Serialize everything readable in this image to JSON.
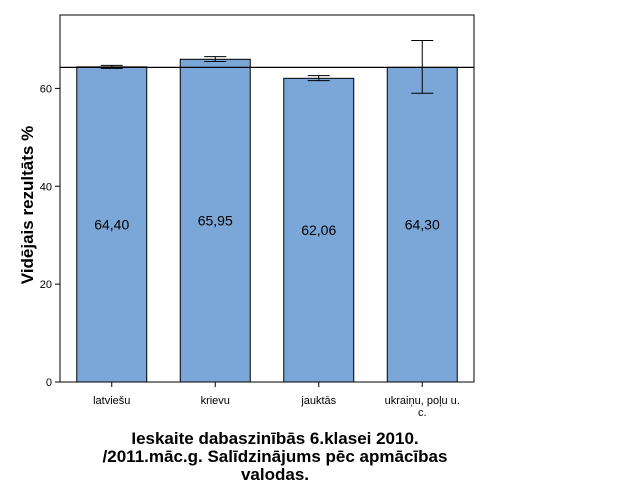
{
  "chart_data": {
    "type": "bar",
    "categories": [
      "latviešu",
      "krievu",
      "jauktās",
      "ukraiņu, poļu u. c."
    ],
    "category_lines": [
      [
        "latviešu"
      ],
      [
        "krievu"
      ],
      [
        "jauktās"
      ],
      [
        "ukraiņu, poļu u.",
        "c."
      ]
    ],
    "values": [
      64.4,
      65.95,
      62.06,
      64.3
    ],
    "value_labels": [
      "64,40",
      "65,95",
      "62,06",
      "64,30"
    ],
    "error_low": [
      64.1,
      65.5,
      61.6,
      59.0
    ],
    "error_high": [
      64.7,
      66.5,
      62.6,
      69.8
    ],
    "reference_line": 64.3,
    "ylim": [
      0,
      75
    ],
    "yticks": [
      0,
      20,
      40,
      60
    ],
    "ylabel": "Vidējais rezultāts %",
    "xlabel": "",
    "title": "Ieskaite dabaszinībās 6.klasei 2010. /2011.māc.g. Salīdzinājums pēc apmācības valodas.",
    "title_lines": [
      "Ieskaite dabaszinībās 6.klasei 2010.",
      "/2011.māc.g. Salīdzinājums pēc apmācības",
      "valodas."
    ],
    "bar_color": "#7aa7d8",
    "bar_stroke": "#000000",
    "grid": false
  }
}
